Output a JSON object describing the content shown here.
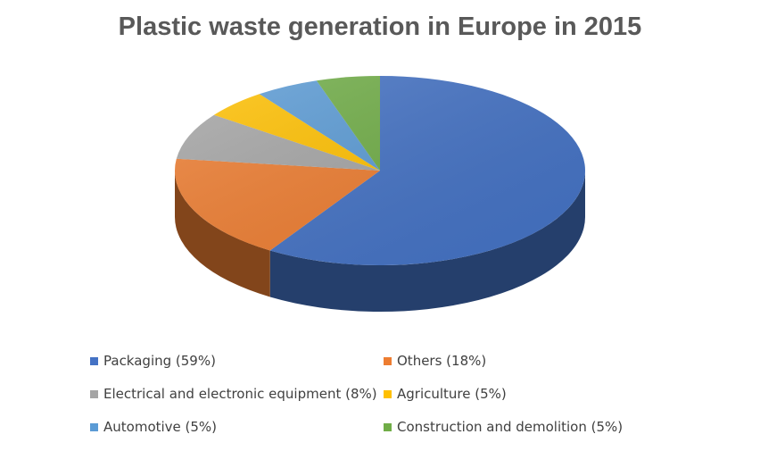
{
  "chart_data": {
    "type": "pie",
    "title": "Plastic waste generation in Europe in 2015",
    "slices": [
      {
        "label": "Packaging (59%)",
        "value": 59,
        "color": "#4472C4"
      },
      {
        "label": "Others (18%)",
        "value": 18,
        "color": "#ED7D31"
      },
      {
        "label": "Electrical and electronic equipment (8%)",
        "value": 8,
        "color": "#A5A5A5"
      },
      {
        "label": "Agriculture (5%)",
        "value": 5,
        "color": "#FFC000"
      },
      {
        "label": "Automotive (5%)",
        "value": 5,
        "color": "#5B9BD5"
      },
      {
        "label": "Construction and demolition (5%)",
        "value": 5,
        "color": "#70AD47"
      }
    ],
    "legend_position": "bottom"
  }
}
